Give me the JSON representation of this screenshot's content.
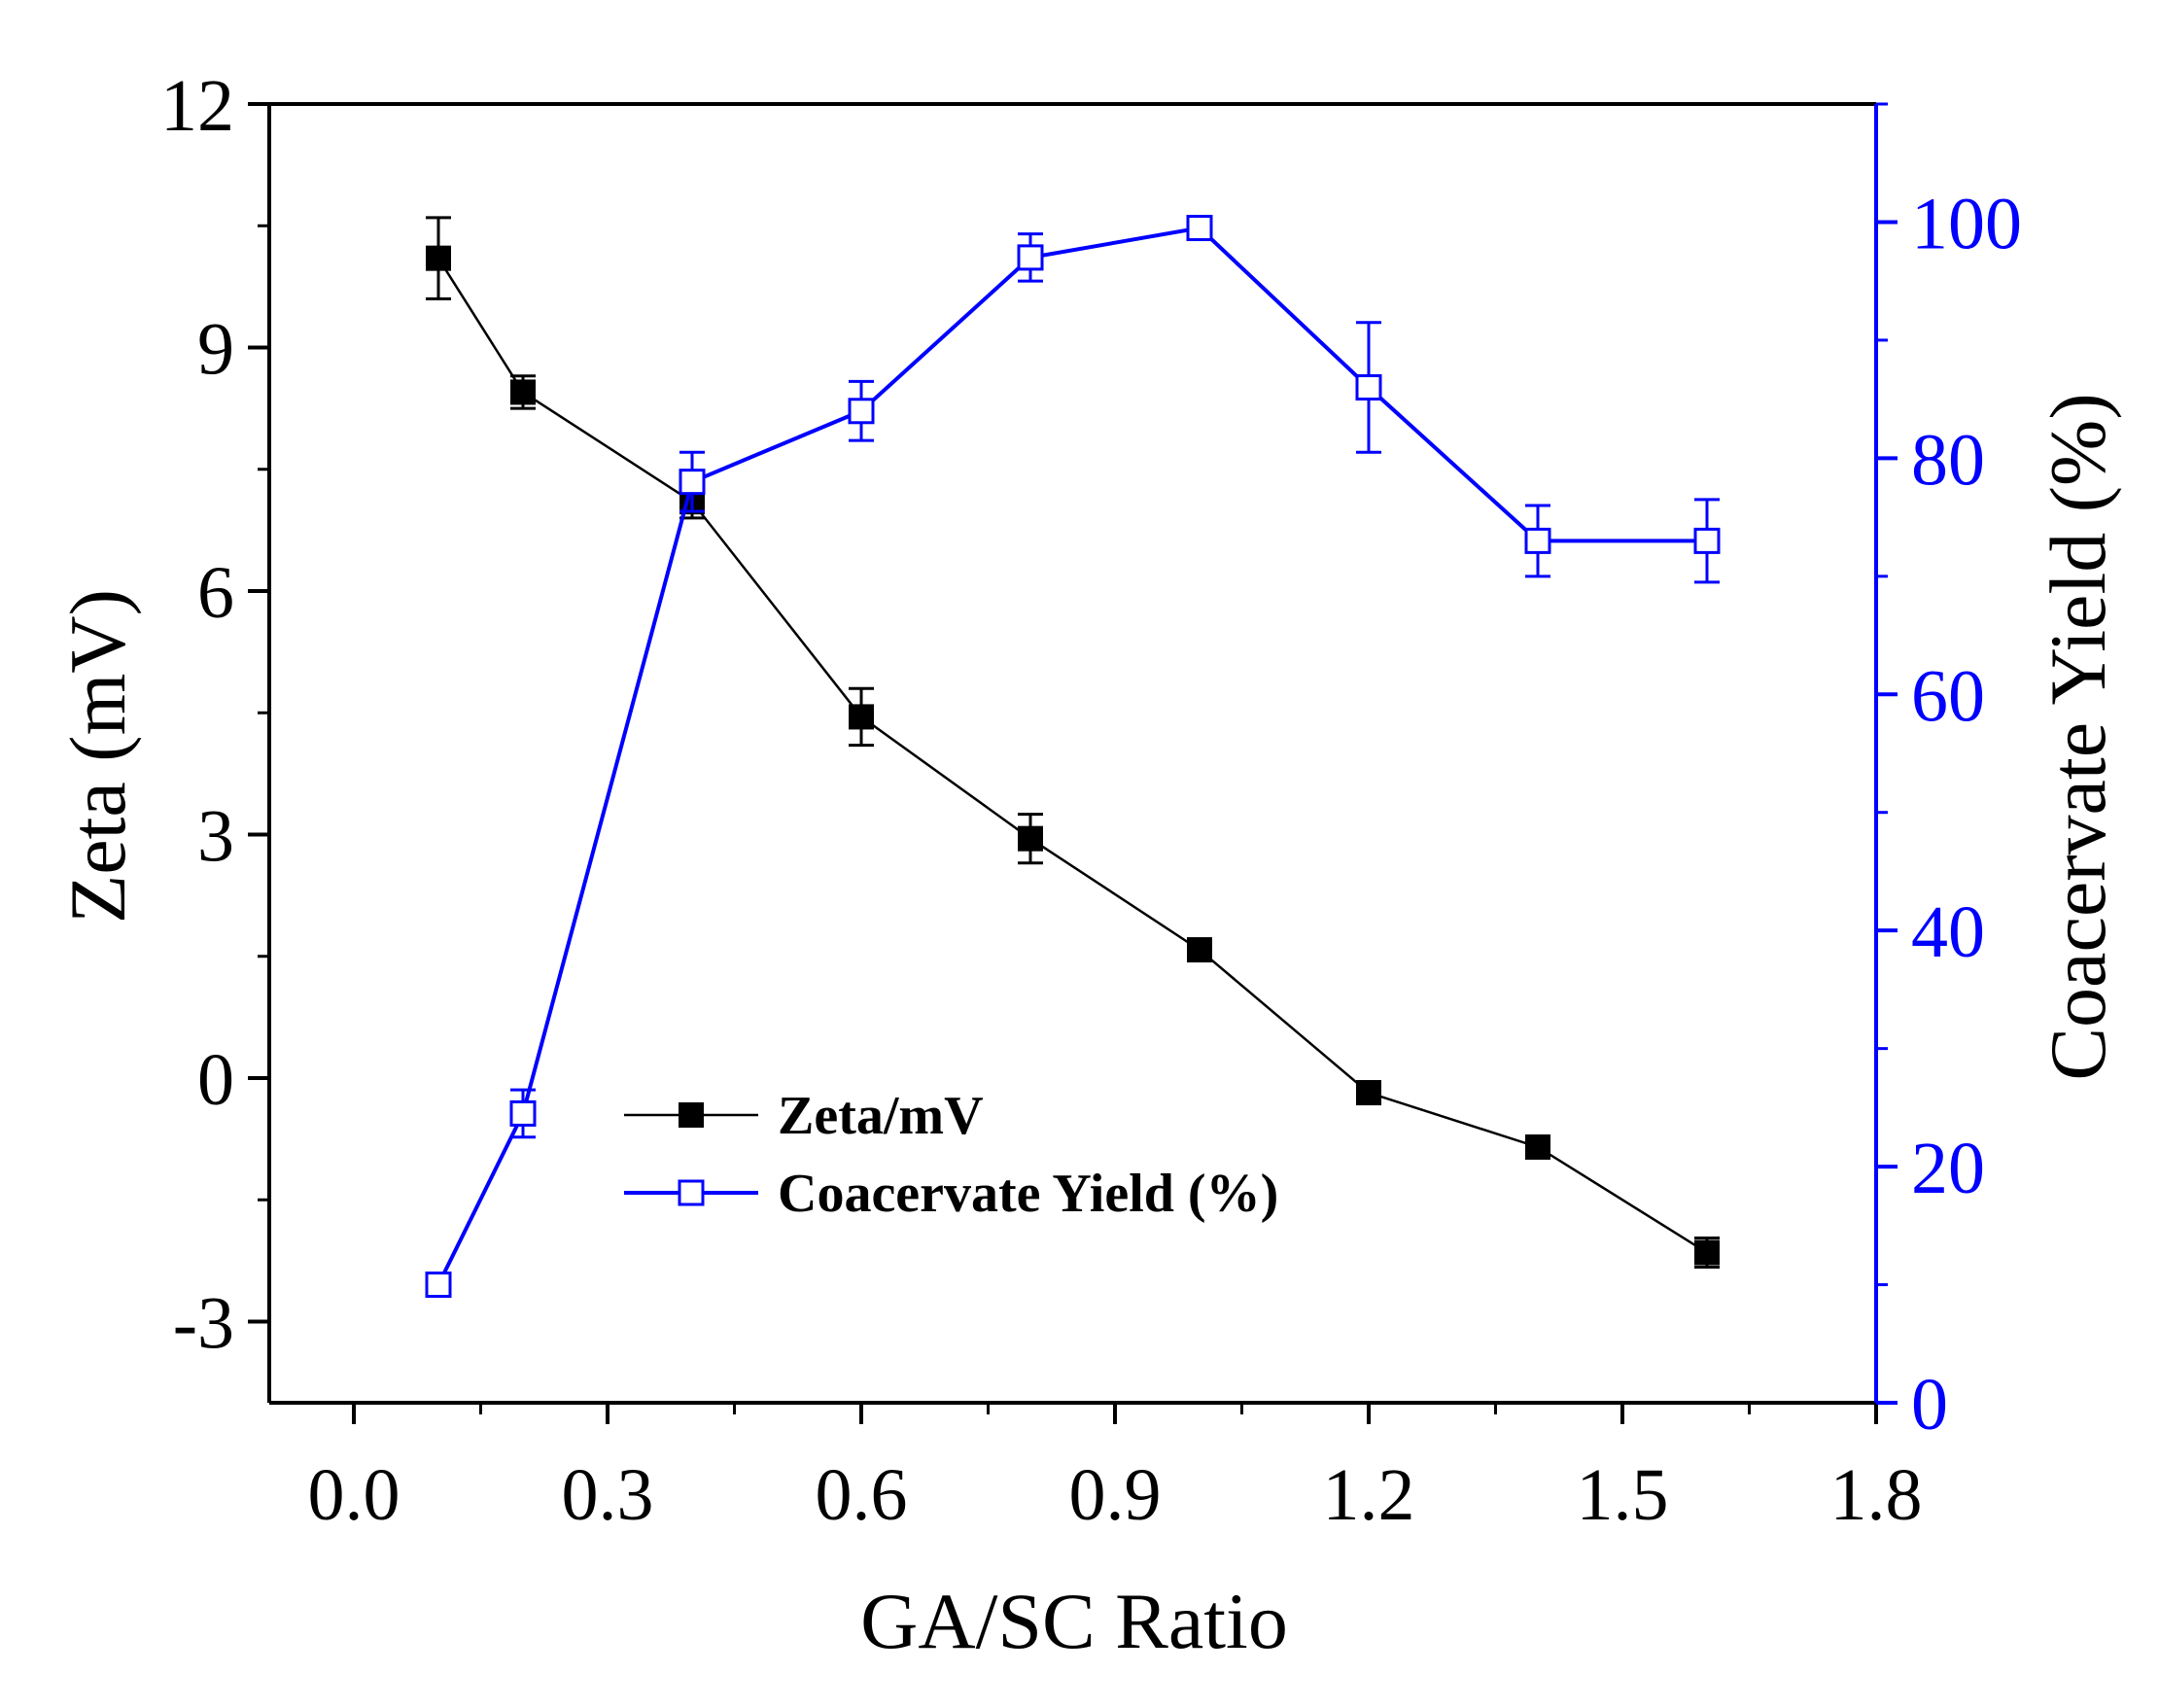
{
  "chart_data": {
    "type": "line",
    "xlabel": "GA/SC Ratio",
    "ylabel": "Zeta (mV)",
    "y2label": "Coacervate Yield (%)",
    "xlim": [
      -0.1,
      1.8
    ],
    "xticks": [
      "0.0",
      "0.3",
      "0.6",
      "0.9",
      "1.2",
      "1.5",
      "1.8"
    ],
    "xtick_values": [
      0.0,
      0.3,
      0.6,
      0.9,
      1.2,
      1.5,
      1.8
    ],
    "ylim": [
      -4,
      12
    ],
    "yticks": [
      "12",
      "9",
      "6",
      "3",
      "0",
      "-3"
    ],
    "ytick_values": [
      12,
      9,
      6,
      3,
      0,
      -3
    ],
    "y2lim": [
      0,
      110
    ],
    "y2ticks": [
      "100",
      "80",
      "60",
      "40",
      "20",
      "0"
    ],
    "y2tick_values": [
      100,
      80,
      60,
      40,
      20,
      0
    ],
    "x": [
      0.1,
      0.2,
      0.4,
      0.6,
      0.8,
      1.0,
      1.2,
      1.4,
      1.6
    ],
    "series": [
      {
        "name": "Zeta/mV",
        "axis": "left",
        "color": "#000000",
        "marker": "filled-square",
        "values": [
          10.1,
          8.45,
          7.1,
          4.45,
          2.95,
          1.58,
          -0.18,
          -0.85,
          -2.15
        ],
        "errors": [
          0.5,
          0.2,
          0.2,
          0.35,
          0.3,
          0.12,
          0.1,
          0.08,
          0.18
        ]
      },
      {
        "name": "Coacervate Yield (%)",
        "axis": "right",
        "color": "#0000ff",
        "marker": "open-square",
        "values": [
          10,
          24.5,
          78,
          84,
          97,
          99.5,
          86,
          73,
          73
        ],
        "errors": [
          0.5,
          2,
          2.5,
          2.5,
          2,
          0.8,
          5.5,
          3,
          3.5
        ]
      }
    ],
    "legend": {
      "position": "lower-center",
      "entries": [
        "Zeta/mV",
        "Coacervate Yield (%)"
      ]
    }
  }
}
